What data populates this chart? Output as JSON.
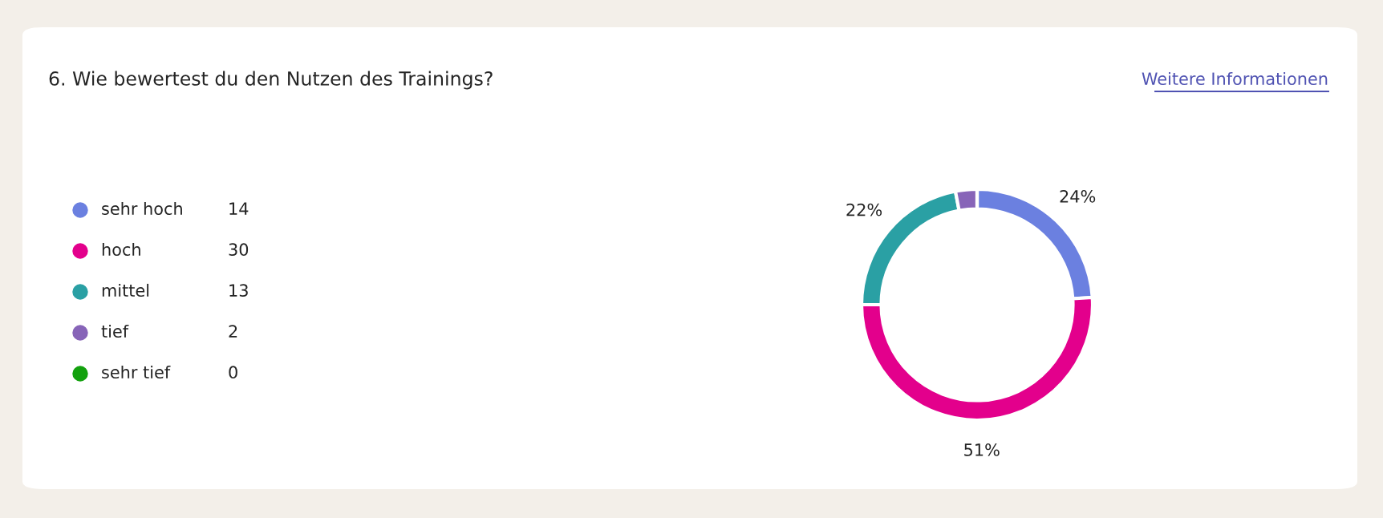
{
  "chart_data": {
    "type": "donut",
    "title": "6. Wie bewertest du den Nutzen des Trainings?",
    "categories": [
      "sehr hoch",
      "hoch",
      "mittel",
      "tief",
      "sehr tief"
    ],
    "values": [
      24,
      51,
      22,
      3,
      0
    ],
    "colors": [
      "#6b80e0",
      "#e3008c",
      "#2aa0a4",
      "#8764b8",
      "#13a10e"
    ],
    "value_labels": [
      "24%",
      "51%",
      "22%",
      null,
      null
    ],
    "legend": "left",
    "annotations": [
      "Weitere Informationen",
      {
        "text": "14",
        "x": "sehr hoch"
      },
      {
        "text": "30",
        "x": "hoch"
      },
      {
        "text": "13",
        "x": "mittel"
      },
      {
        "text": "2",
        "x": "tief"
      },
      {
        "text": "0",
        "x": "sehr tief"
      }
    ]
  }
}
